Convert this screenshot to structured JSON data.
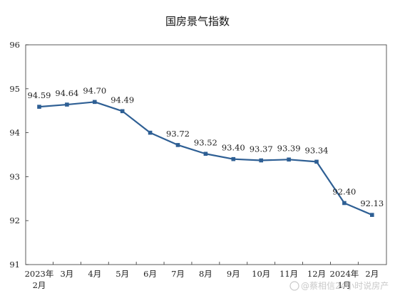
{
  "chart_data": {
    "type": "line",
    "title": "国房景气指数",
    "categories": [
      "2023年\n2月",
      "3月",
      "4月",
      "5月",
      "6月",
      "7月",
      "8月",
      "9月",
      "10月",
      "11月",
      "12月",
      "2024年\n1月",
      "2月"
    ],
    "series": [
      {
        "values": [
          94.59,
          94.64,
          94.7,
          94.49,
          94.0,
          93.72,
          93.52,
          93.4,
          93.37,
          93.39,
          93.34,
          92.4,
          92.13
        ]
      }
    ],
    "data_labels": [
      "94.59",
      "94.64",
      "94.70",
      "94.49",
      "",
      "93.72",
      "93.52",
      "93.40",
      "93.37",
      "93.39",
      "93.34",
      "92.40",
      "92.13"
    ],
    "yticks": [
      "96",
      "95",
      "94",
      "93",
      "92",
      "91"
    ],
    "ylim": [
      91,
      96
    ],
    "xlabel": "",
    "ylabel": "",
    "grid": false,
    "legend": "none",
    "line_color": "#2e5f94"
  },
  "watermark": {
    "text": "@蔡相信24小时说房产"
  }
}
